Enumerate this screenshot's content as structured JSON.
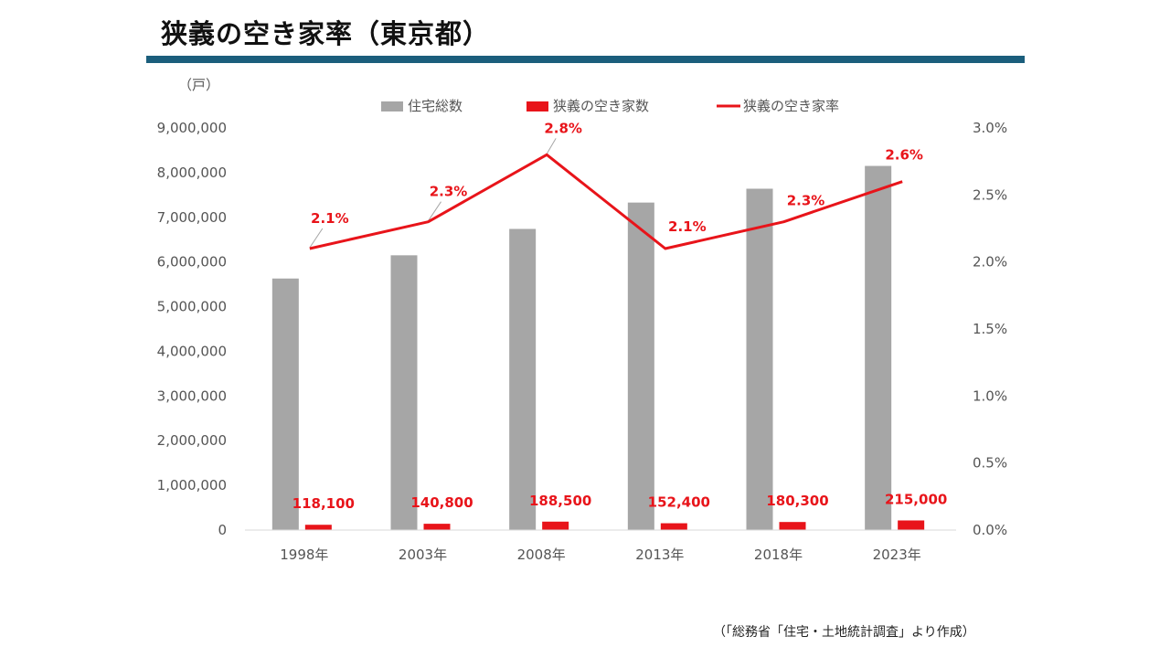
{
  "page": {
    "title": "狭義の空き家率（東京都）",
    "source_note": "（「総務省「住宅・土地統計調査」より作成）"
  },
  "colors": {
    "accent_rule": "#1b5e7c",
    "total_bar": "#a6a6a6",
    "vacant_bar": "#e8141a",
    "rate_line": "#e8141a"
  },
  "chart_data": {
    "type": "bar",
    "categories": [
      "1998年",
      "2003年",
      "2008年",
      "2013年",
      "2018年",
      "2023年"
    ],
    "unit_label": "（戸）",
    "y_left": {
      "min": 0,
      "max": 9000000,
      "step": 1000000
    },
    "y_right": {
      "min": 0,
      "max": 0.03,
      "step": 0.005
    },
    "legend_position": "top",
    "grid": false,
    "series": [
      {
        "name": "住宅総数",
        "type": "bar",
        "axis": "left",
        "values": [
          5630000,
          6150000,
          6740000,
          7330000,
          7640000,
          8150000
        ]
      },
      {
        "name": "狭義の空き家数",
        "type": "bar",
        "axis": "left",
        "values": [
          118100,
          140800,
          188500,
          152400,
          180300,
          215000
        ],
        "labels": [
          "118,100",
          "140,800",
          "188,500",
          "152,400",
          "180,300",
          "215,000"
        ]
      },
      {
        "name": "狭義の空き家率",
        "type": "line",
        "axis": "right",
        "values": [
          0.021,
          0.023,
          0.028,
          0.021,
          0.023,
          0.026
        ],
        "labels": [
          "2.1%",
          "2.3%",
          "2.8%",
          "2.1%",
          "2.3%",
          "2.6%"
        ]
      }
    ]
  }
}
